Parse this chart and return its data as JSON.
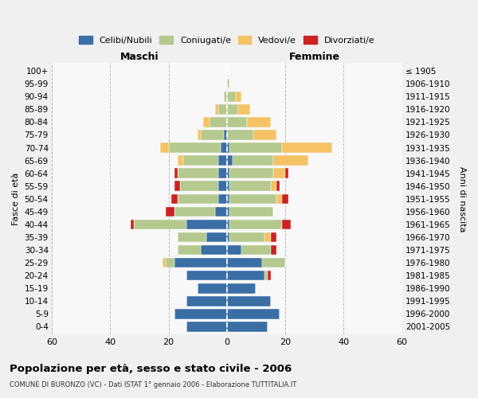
{
  "age_groups": [
    "0-4",
    "5-9",
    "10-14",
    "15-19",
    "20-24",
    "25-29",
    "30-34",
    "35-39",
    "40-44",
    "45-49",
    "50-54",
    "55-59",
    "60-64",
    "65-69",
    "70-74",
    "75-79",
    "80-84",
    "85-89",
    "90-94",
    "95-99",
    "100+"
  ],
  "birth_years": [
    "2001-2005",
    "1996-2000",
    "1991-1995",
    "1986-1990",
    "1981-1985",
    "1976-1980",
    "1971-1975",
    "1966-1970",
    "1961-1965",
    "1956-1960",
    "1951-1955",
    "1946-1950",
    "1941-1945",
    "1936-1940",
    "1931-1935",
    "1926-1930",
    "1921-1925",
    "1916-1920",
    "1911-1915",
    "1906-1910",
    "≤ 1905"
  ],
  "colors": {
    "celibi": "#3a6ea5",
    "coniugati": "#b5c98e",
    "vedovi": "#f5c264",
    "divorziati": "#cc2222"
  },
  "maschi": {
    "celibi": [
      14,
      18,
      14,
      10,
      14,
      18,
      9,
      7,
      14,
      4,
      3,
      3,
      3,
      3,
      2,
      1,
      0,
      0,
      0,
      0,
      0
    ],
    "coniugati": [
      0,
      0,
      0,
      0,
      0,
      3,
      8,
      10,
      18,
      14,
      14,
      13,
      14,
      12,
      18,
      8,
      6,
      3,
      1,
      0,
      0
    ],
    "vedovi": [
      0,
      0,
      0,
      0,
      0,
      1,
      0,
      0,
      0,
      0,
      0,
      0,
      0,
      2,
      3,
      1,
      2,
      1,
      0,
      0,
      0
    ],
    "divorziati": [
      0,
      0,
      0,
      0,
      0,
      0,
      0,
      0,
      1,
      3,
      2,
      2,
      1,
      0,
      0,
      0,
      0,
      0,
      0,
      0,
      0
    ]
  },
  "femmine": {
    "nubili": [
      14,
      18,
      15,
      10,
      13,
      12,
      5,
      1,
      1,
      1,
      1,
      1,
      1,
      2,
      1,
      0,
      0,
      0,
      0,
      0,
      0
    ],
    "coniugate": [
      0,
      0,
      0,
      0,
      1,
      8,
      10,
      12,
      18,
      15,
      16,
      14,
      15,
      14,
      18,
      9,
      7,
      4,
      3,
      1,
      0
    ],
    "vedove": [
      0,
      0,
      0,
      0,
      0,
      0,
      0,
      2,
      0,
      0,
      2,
      2,
      4,
      12,
      17,
      8,
      8,
      4,
      2,
      0,
      0
    ],
    "divorziate": [
      0,
      0,
      0,
      0,
      1,
      0,
      2,
      2,
      3,
      0,
      2,
      1,
      1,
      0,
      0,
      0,
      0,
      0,
      0,
      0,
      0
    ]
  },
  "xlim": 60,
  "title": "Popolazione per età, sesso e stato civile - 2006",
  "subtitle": "COMUNE DI BURONZO (VC) - Dati ISTAT 1° gennaio 2006 - Elaborazione TUTTITALIA.IT",
  "ylabel_left": "Fasce di età",
  "ylabel_right": "Anni di nascita",
  "xlabel_maschi": "Maschi",
  "xlabel_femmine": "Femmine",
  "legend_labels": [
    "Celibi/Nubili",
    "Coniugati/e",
    "Vedovi/e",
    "Divorziati/e"
  ],
  "bg_color": "#f0f0f0",
  "plot_bg": "#f8f8f8"
}
